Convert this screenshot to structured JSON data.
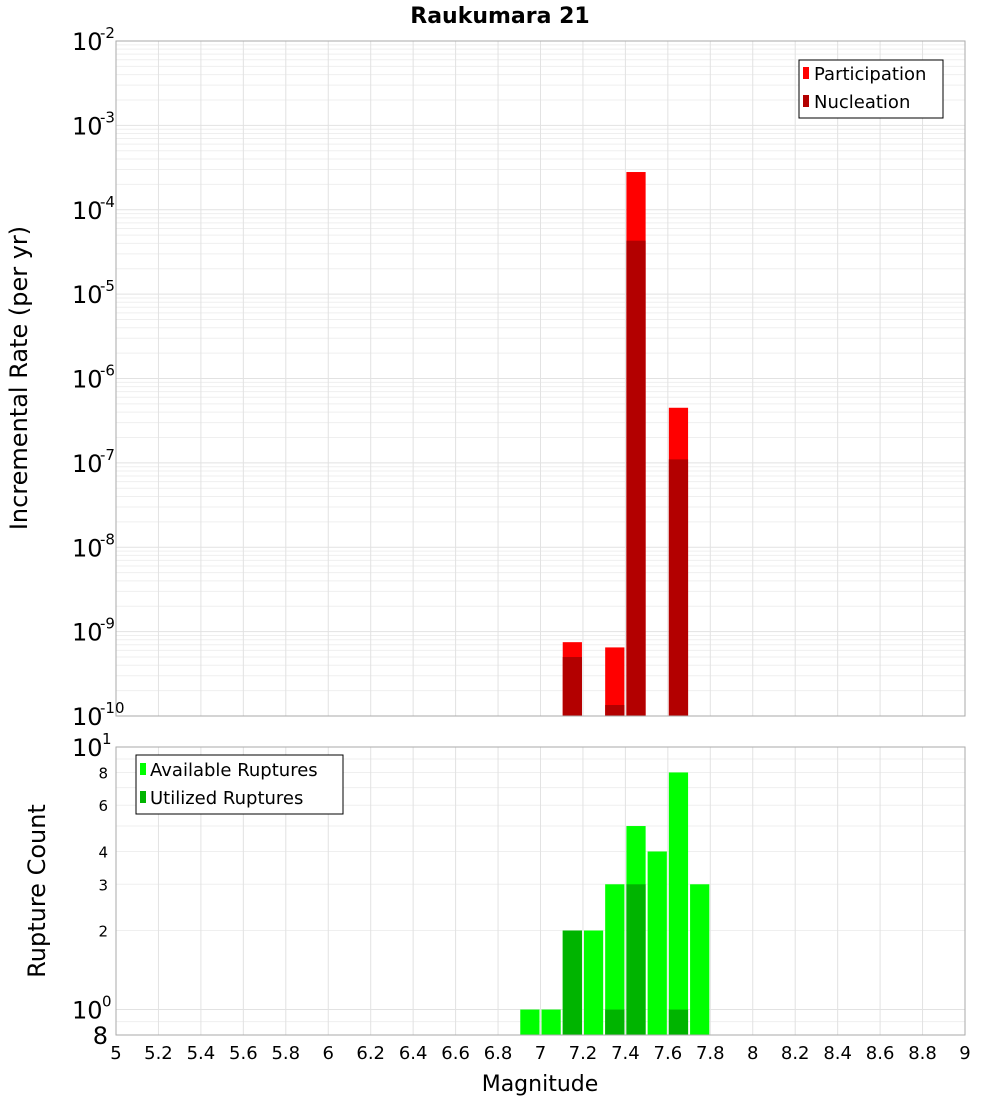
{
  "chart_data": [
    {
      "type": "bar",
      "title": "Raukumara 21",
      "ylabel": "Incremental Rate (per yr)",
      "xlabel": "",
      "xlim": [
        5,
        9
      ],
      "ylim": [
        1e-10,
        0.01
      ],
      "yscale": "log",
      "grid": true,
      "bar_width": 0.1,
      "legend_position": "top-right",
      "series": [
        {
          "name": "Participation",
          "color": "#ff0000",
          "x": [
            7.15,
            7.35,
            7.45,
            7.65
          ],
          "values": [
            7.5e-10,
            6.5e-10,
            0.00028,
            4.5e-07
          ]
        },
        {
          "name": "Nucleation",
          "color": "#b30000",
          "x": [
            7.15,
            7.35,
            7.45,
            7.65
          ],
          "values": [
            5e-10,
            1.35e-10,
            4.3e-05,
            1.1e-07
          ]
        }
      ]
    },
    {
      "type": "bar",
      "title": "",
      "ylabel": "Rupture Count",
      "xlabel": "Magnitude",
      "xlim": [
        5,
        9
      ],
      "ylim": [
        0.8,
        10
      ],
      "yscale": "log",
      "grid": true,
      "bar_width": 0.1,
      "legend_position": "top-left",
      "x_ticks": [
        "5",
        "5.2",
        "5.4",
        "5.6",
        "5.8",
        "6",
        "6.2",
        "6.4",
        "6.6",
        "6.8",
        "7",
        "7.2",
        "7.4",
        "7.6",
        "7.8",
        "8",
        "8.2",
        "8.4",
        "8.6",
        "8.8",
        "9"
      ],
      "y_minor_labels": [
        "8",
        "2",
        "3",
        "4",
        "6",
        "8"
      ],
      "series": [
        {
          "name": "Available Ruptures",
          "color": "#00ff00",
          "x": [
            6.95,
            7.05,
            7.15,
            7.25,
            7.35,
            7.45,
            7.55,
            7.65,
            7.75
          ],
          "values": [
            1,
            1,
            2,
            2,
            3,
            5,
            4,
            8,
            3
          ]
        },
        {
          "name": "Utilized Ruptures",
          "color": "#00b400",
          "x": [
            7.15,
            7.35,
            7.45,
            7.65
          ],
          "values": [
            2,
            1,
            3,
            1
          ]
        }
      ]
    }
  ]
}
